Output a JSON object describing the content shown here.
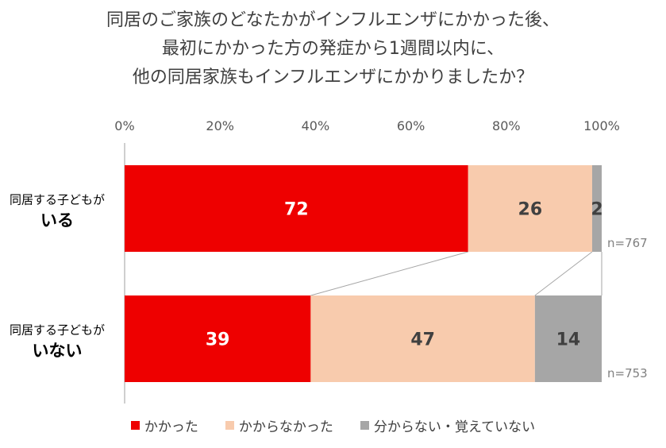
{
  "title_lines": [
    "同居のご家族のどなたかがインフルエンザにかかった後、",
    "最初にかかった方の発症から1週間以内に、",
    "他の同居家族もインフルエンザにかかりましたか？"
  ],
  "chart_data": {
    "type": "bar",
    "orientation": "horizontal",
    "stacked": true,
    "xlim": [
      0,
      100
    ],
    "ticks": [
      "0%",
      "20%",
      "40%",
      "60%",
      "80%",
      "100%"
    ],
    "categories": [
      {
        "sub": "同居する子どもが",
        "main": "いる",
        "n": "n=767"
      },
      {
        "sub": "同居する子どもが",
        "main": "いない",
        "n": "n=753"
      }
    ],
    "series": [
      {
        "name": "かかった",
        "color": "#ee0000",
        "label_color": "#ffffff",
        "values": [
          72,
          39
        ]
      },
      {
        "name": "かからなかった",
        "color": "#f8cbad",
        "label_color": "#404040",
        "values": [
          26,
          47
        ]
      },
      {
        "name": "分からない・覚えていない",
        "color": "#a6a6a6",
        "label_color": "#404040",
        "values": [
          2,
          14
        ]
      }
    ],
    "legend_position": "bottom",
    "grid": false
  }
}
